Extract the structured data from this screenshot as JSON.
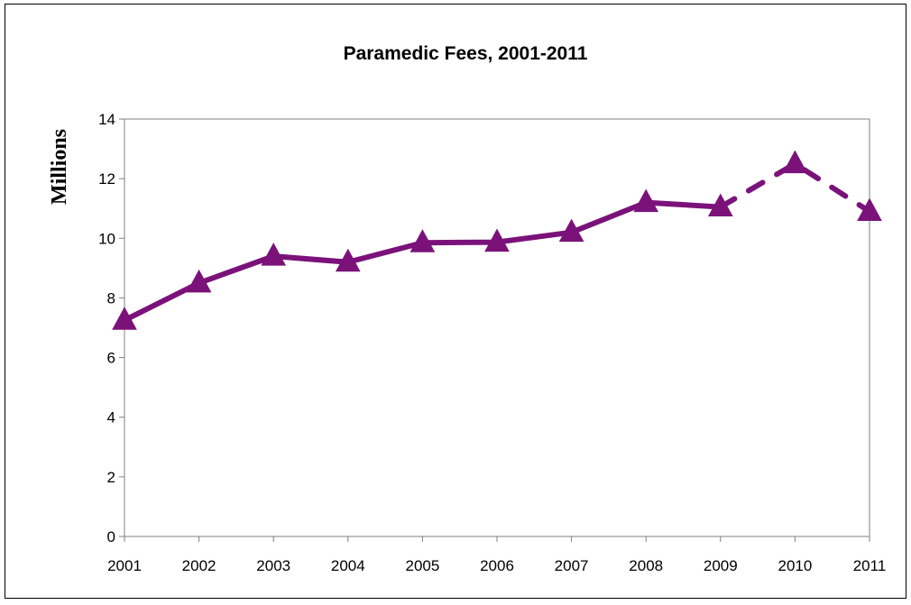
{
  "chart_data": {
    "type": "line",
    "title": "Paramedic Fees, 2001-2011",
    "xlabel": "",
    "ylabel": "Millions",
    "categories": [
      "2001",
      "2002",
      "2003",
      "2004",
      "2005",
      "2006",
      "2007",
      "2008",
      "2009",
      "2010",
      "2011"
    ],
    "y_ticks": [
      "0",
      "2",
      "4",
      "6",
      "8",
      "10",
      "12",
      "14"
    ],
    "ylim": [
      0,
      14
    ],
    "grid": false,
    "legend": "none",
    "series": [
      {
        "values": [
          7.25,
          8.5,
          9.4,
          9.2,
          9.85,
          9.87,
          10.2,
          11.2,
          11.05,
          12.5,
          10.9
        ],
        "solid_through_index": 8,
        "dashed_from_index": 8,
        "color": "#7B127A",
        "marker": "triangle"
      }
    ]
  }
}
